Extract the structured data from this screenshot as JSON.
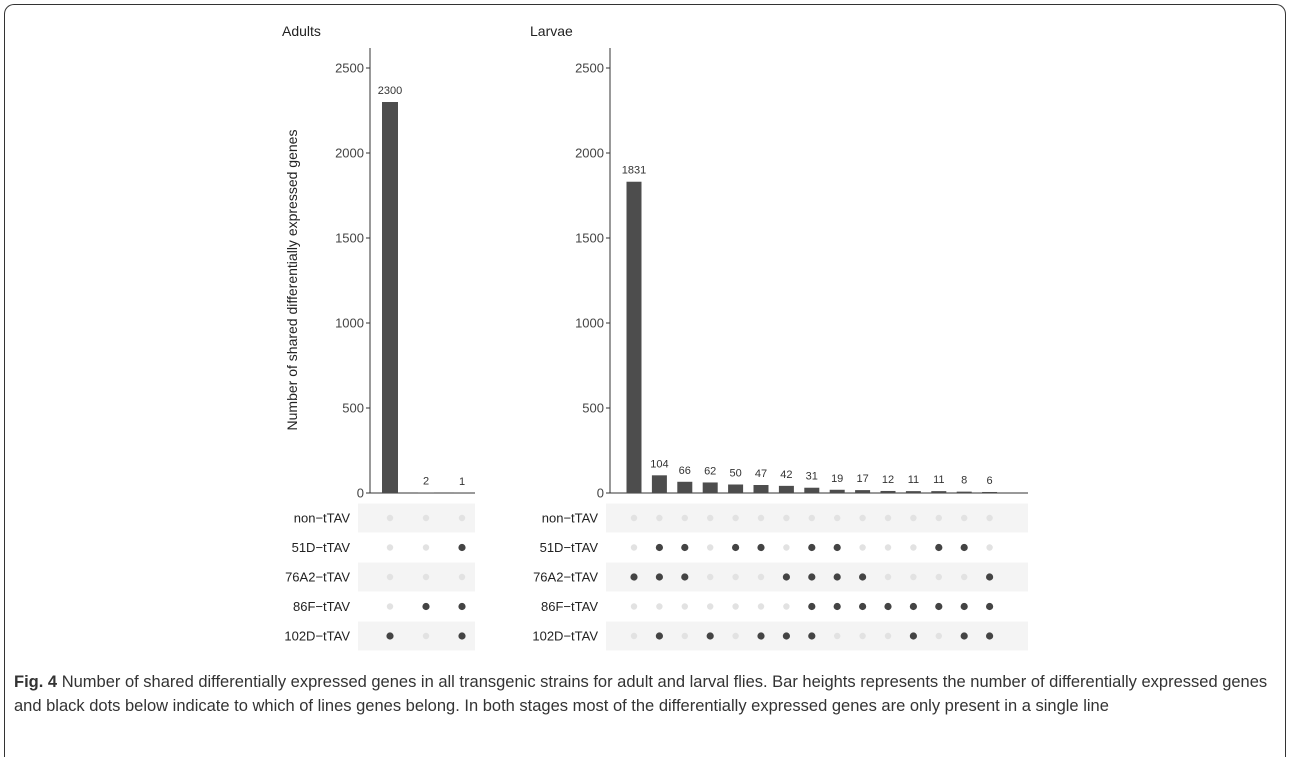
{
  "figure": {
    "caption_label": "Fig. 4",
    "caption_text": "Number of shared differentially expressed genes in all transgenic strains for adult and larval flies. Bar heights represents the number of differentially expressed genes and black dots below indicate to which of lines genes belong. In both stages most of the differentially expressed genes are only present in a single line"
  },
  "chart_data": [
    {
      "type": "bar",
      "panel": "Adults",
      "title": "Adults",
      "ylabel": "Number of shared differentially expressed genes",
      "ylim": [
        0,
        2650
      ],
      "yticks": [
        0,
        500,
        1000,
        1500,
        2000,
        2500
      ],
      "values": [
        2300,
        2,
        1
      ],
      "sets": [
        "non−tTAV",
        "51D−tTAV",
        "76A2−tTAV",
        "86F−tTAV",
        "102D−tTAV"
      ],
      "membership": [
        [
          "102D−tTAV"
        ],
        [
          "86F−tTAV"
        ],
        [
          "51D−tTAV",
          "86F−tTAV",
          "102D−tTAV"
        ]
      ]
    },
    {
      "type": "bar",
      "panel": "Larvae",
      "title": "Larvae",
      "ylim": [
        0,
        2650
      ],
      "yticks": [
        0,
        500,
        1000,
        1500,
        2000,
        2500
      ],
      "values": [
        1831,
        104,
        66,
        62,
        50,
        47,
        42,
        31,
        19,
        17,
        12,
        11,
        11,
        8,
        6
      ],
      "sets": [
        "non−tTAV",
        "51D−tTAV",
        "76A2−tTAV",
        "86F−tTAV",
        "102D−tTAV"
      ],
      "membership": [
        [
          "76A2−tTAV"
        ],
        [
          "51D−tTAV",
          "76A2−tTAV",
          "102D−tTAV"
        ],
        [
          "51D−tTAV",
          "76A2−tTAV"
        ],
        [
          "102D−tTAV"
        ],
        [
          "51D−tTAV"
        ],
        [
          "51D−tTAV",
          "102D−tTAV"
        ],
        [
          "76A2−tTAV",
          "102D−tTAV"
        ],
        [
          "51D−tTAV",
          "76A2−tTAV",
          "86F−tTAV",
          "102D−tTAV"
        ],
        [
          "51D−tTAV",
          "76A2−tTAV",
          "86F−tTAV"
        ],
        [
          "76A2−tTAV",
          "86F−tTAV"
        ],
        [
          "86F−tTAV"
        ],
        [
          "86F−tTAV",
          "102D−tTAV"
        ],
        [
          "51D−tTAV",
          "86F−tTAV"
        ],
        [
          "51D−tTAV",
          "86F−tTAV",
          "102D−tTAV"
        ],
        [
          "76A2−tTAV",
          "86F−tTAV",
          "102D−tTAV"
        ]
      ]
    }
  ],
  "colors": {
    "bar": "#4d4d4d",
    "dot_active": "#444444",
    "dot_inactive": "#e2e2e2",
    "stripe": "#f4f4f4"
  }
}
